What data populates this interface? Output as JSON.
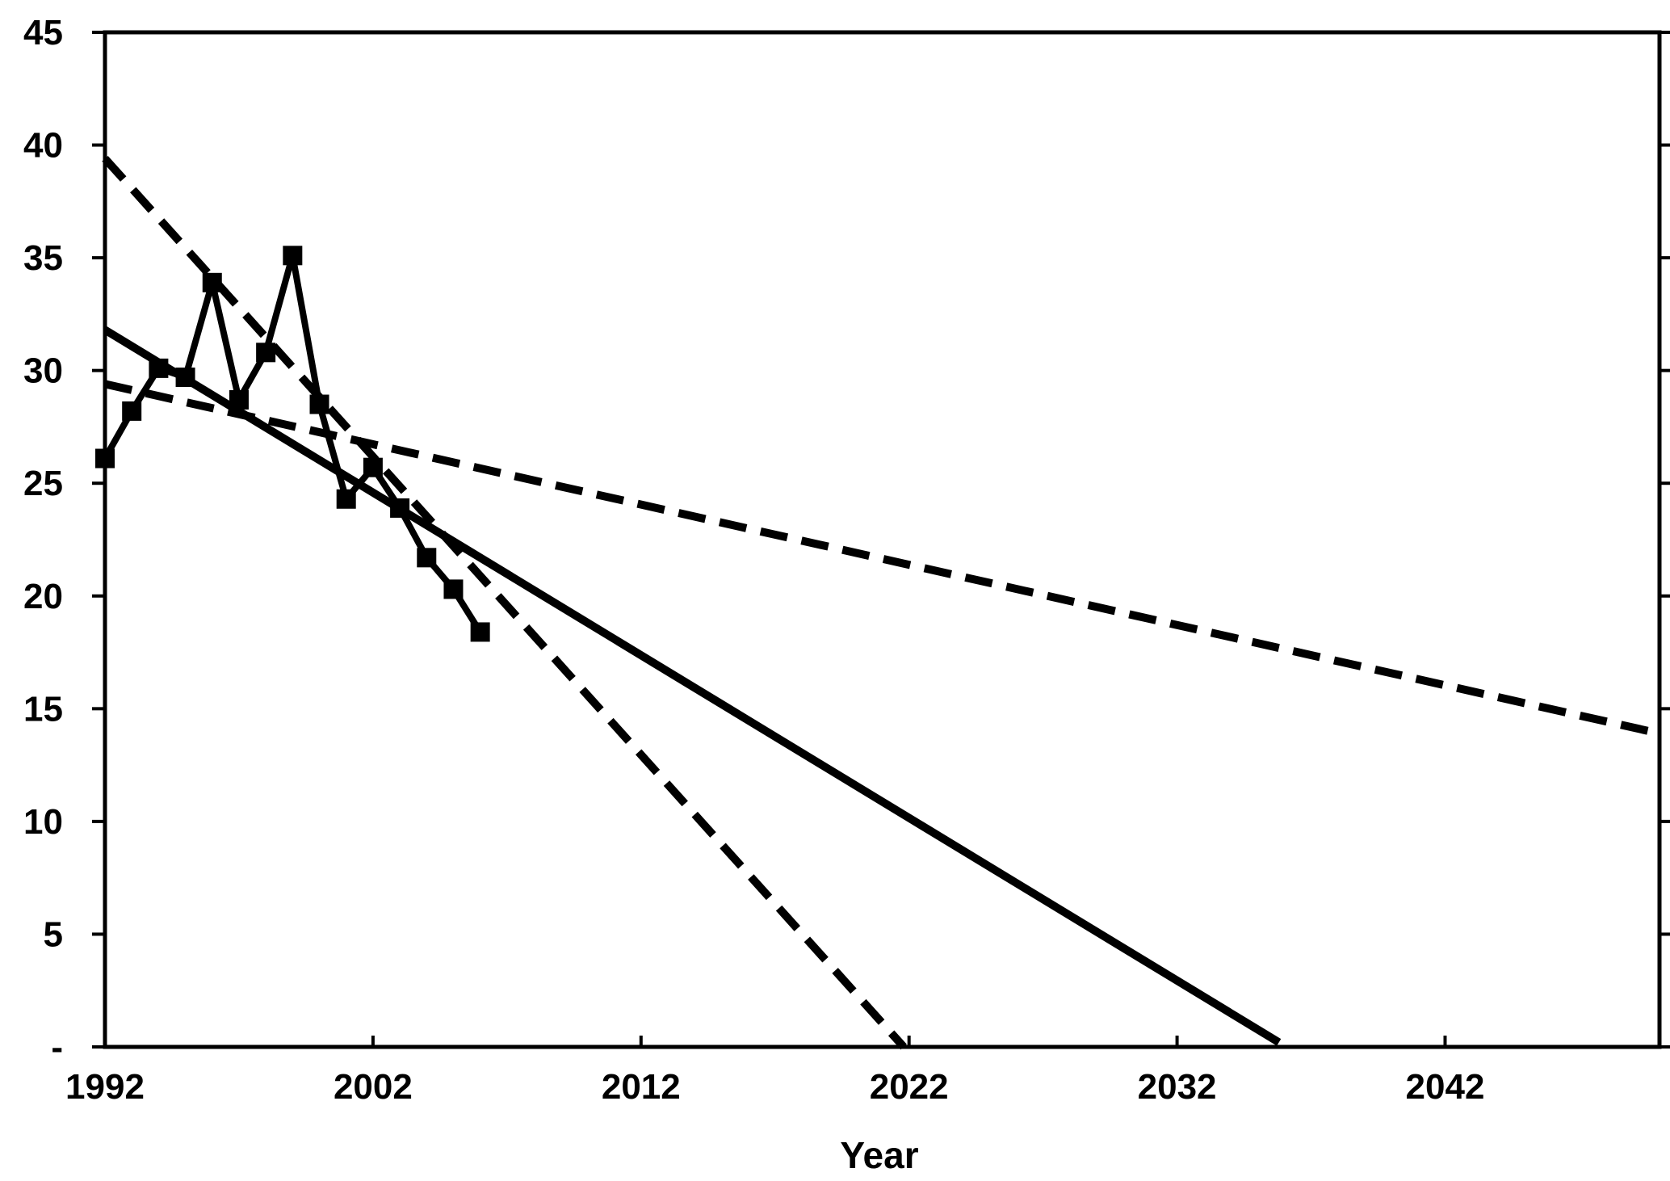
{
  "chart_data": {
    "type": "line",
    "title": "",
    "xlabel": "Year",
    "ylabel": "",
    "xlim": [
      1992,
      2050
    ],
    "ylim": [
      0,
      45
    ],
    "grid": false,
    "legend": "none",
    "x_ticks": [
      {
        "value": 1992,
        "label": "1992"
      },
      {
        "value": 2002,
        "label": "2002"
      },
      {
        "value": 2012,
        "label": "2012"
      },
      {
        "value": 2022,
        "label": "2022"
      },
      {
        "value": 2032,
        "label": "2032"
      },
      {
        "value": 2042,
        "label": "2042"
      }
    ],
    "y_ticks": [
      {
        "value": 0,
        "label": "-"
      },
      {
        "value": 5,
        "label": "5"
      },
      {
        "value": 10,
        "label": "10"
      },
      {
        "value": 15,
        "label": "15"
      },
      {
        "value": 20,
        "label": "20"
      },
      {
        "value": 25,
        "label": "25"
      },
      {
        "value": 30,
        "label": "30"
      },
      {
        "value": 35,
        "label": "35"
      },
      {
        "value": 40,
        "label": "40"
      },
      {
        "value": 45,
        "label": "45"
      }
    ],
    "series": [
      {
        "style": "solid-square-markers",
        "color": "#000000",
        "points": [
          [
            1992,
            26.1
          ],
          [
            1993,
            28.2
          ],
          [
            1994,
            30.1
          ],
          [
            1995,
            29.7
          ],
          [
            1996,
            33.9
          ],
          [
            1997,
            28.7
          ],
          [
            1998,
            30.8
          ],
          [
            1999,
            35.1
          ],
          [
            2000,
            28.5
          ],
          [
            2001,
            24.3
          ],
          [
            2002,
            25.7
          ],
          [
            2003,
            23.9
          ],
          [
            2004,
            21.7
          ],
          [
            2005,
            20.3
          ],
          [
            2006,
            18.4
          ]
        ]
      },
      {
        "style": "solid-trend",
        "color": "#000000",
        "points": [
          [
            1992,
            31.8
          ],
          [
            2035.8,
            0.2
          ]
        ]
      },
      {
        "style": "dashed-trend-steep",
        "color": "#000000",
        "points": [
          [
            1992,
            39.4
          ],
          [
            2021.8,
            0
          ]
        ]
      },
      {
        "style": "dashed-trend-shallow",
        "color": "#000000",
        "points": [
          [
            1992,
            29.4
          ],
          [
            2050,
            13.9
          ]
        ]
      }
    ]
  }
}
